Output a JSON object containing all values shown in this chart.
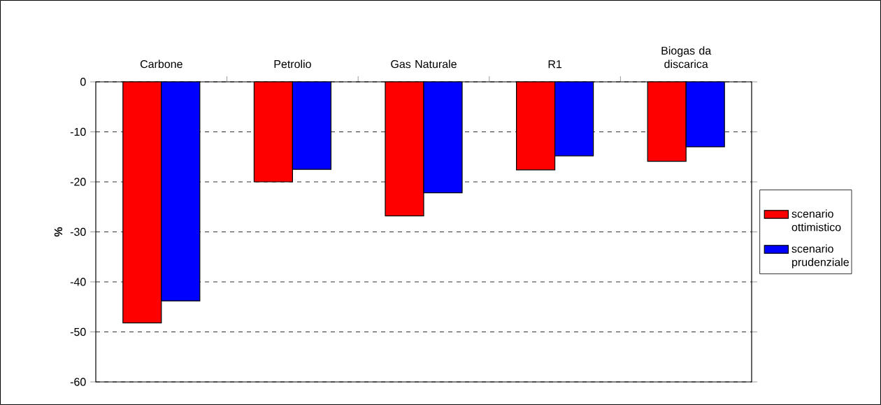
{
  "chart_data": {
    "type": "bar",
    "ylabel": "%",
    "categories": [
      "Carbone",
      "Petrolio",
      "Gas Naturale",
      "R1",
      "Biogas da discarica"
    ],
    "series": [
      {
        "name": "scenario ottimistico",
        "color": "#ff0000",
        "values": [
          -48.2,
          -20.0,
          -26.8,
          -17.6,
          -15.9
        ]
      },
      {
        "name": "scenario prudenziale",
        "color": "#0000ff",
        "values": [
          -43.8,
          -17.5,
          -22.2,
          -14.8,
          -13.0
        ]
      }
    ],
    "ylim": [
      -60,
      0
    ],
    "yticks": [
      -60,
      -50,
      -40,
      -30,
      -20,
      -10,
      0
    ],
    "grid": "y",
    "legend": "right"
  }
}
